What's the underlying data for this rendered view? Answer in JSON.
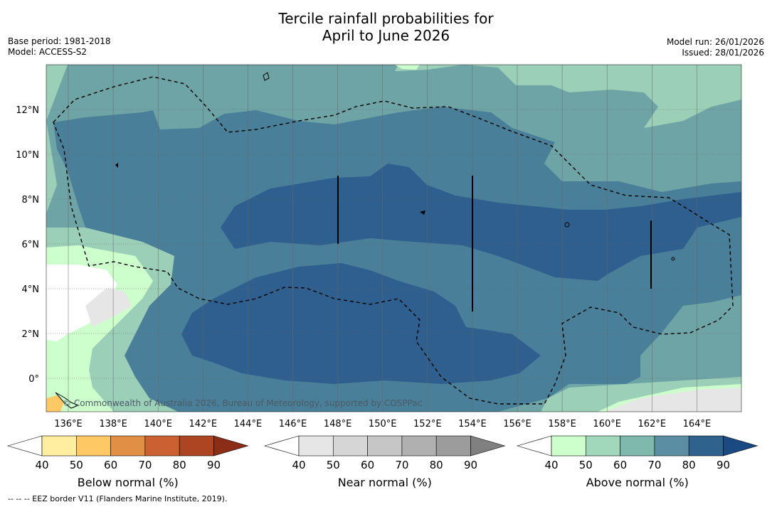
{
  "title_line1": "Tercile rainfall probabilities for",
  "title_line2": "April to June 2026",
  "base_period": "Base period: 1981-2018",
  "model": "Model: ACCESS-S2",
  "model_run": "Model run: 26/01/2026",
  "issued": "Issued: 28/01/2026",
  "copyright": "© Commonwealth of Australia 2026, Bureau of Meteorology, supported by COSPPac",
  "footnote": "--  --  -- EEZ border V11 (Flanders Marine Institute, 2019).",
  "axes": {
    "lat_labels": [
      "12°N",
      "10°N",
      "8°N",
      "6°N",
      "4°N",
      "2°N",
      "0°"
    ],
    "lon_labels": [
      "136°E",
      "138°E",
      "140°E",
      "142°E",
      "144°E",
      "146°E",
      "148°E",
      "150°E",
      "152°E",
      "154°E",
      "156°E",
      "158°E",
      "160°E",
      "162°E",
      "164°E"
    ]
  },
  "colorbars": [
    {
      "label": "Below normal (%)",
      "ticks": [
        "40",
        "50",
        "60",
        "70",
        "80",
        "90"
      ],
      "colors": [
        "#ffffff",
        "#ffeda0",
        "#fec965",
        "#e08f45",
        "#cb6133",
        "#ad4422",
        "#8c2d18"
      ]
    },
    {
      "label": "Near normal (%)",
      "ticks": [
        "40",
        "50",
        "60",
        "70",
        "80",
        "90"
      ],
      "colors": [
        "#ffffff",
        "#e6e6e6",
        "#d6d6d6",
        "#c6c6c6",
        "#b0b0b0",
        "#9c9c9c",
        "#808080"
      ]
    },
    {
      "label": "Above normal (%)",
      "ticks": [
        "40",
        "50",
        "60",
        "70",
        "80",
        "90"
      ],
      "colors": [
        "#ffffff",
        "#ccffcc",
        "#a1d8bc",
        "#7fb8ac",
        "#5b8ea3",
        "#30628e",
        "#1b4a82"
      ]
    }
  ],
  "map_colors": {
    "above_40": "#ccffcc",
    "above_50": "#9bcfb8",
    "above_60": "#6fa4a6",
    "above_70": "#4a7f9a",
    "above_80": "#2f5f8e",
    "near_40": "#e6e6e6",
    "below_40": "#ffeda0",
    "below_50": "#fec965",
    "white": "#ffffff",
    "grid": "#666666"
  }
}
